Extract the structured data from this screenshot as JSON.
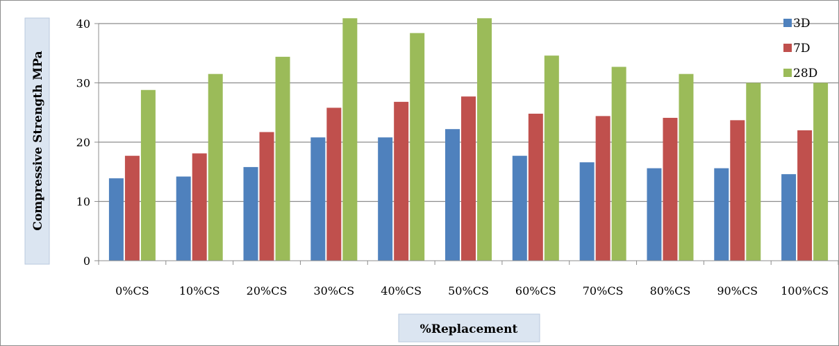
{
  "chart_data": {
    "type": "bar",
    "title": "",
    "xlabel": "%Replacement",
    "ylabel": "Compressive Strength MPa",
    "categories": [
      "0%CS",
      "10%CS",
      "20%CS",
      "30%CS",
      "40%CS",
      "50%CS",
      "60%CS",
      "70%CS",
      "80%CS",
      "90%CS",
      "100%CS"
    ],
    "series": [
      {
        "name": "3D",
        "color": "#4F81BD",
        "values": [
          13.9,
          14.2,
          15.8,
          20.8,
          20.8,
          22.2,
          17.7,
          16.6,
          15.6,
          15.6,
          14.6
        ]
      },
      {
        "name": "7D",
        "color": "#C0504D",
        "values": [
          17.7,
          18.1,
          21.7,
          25.8,
          26.8,
          27.7,
          24.8,
          24.4,
          24.1,
          23.7,
          22.0
        ]
      },
      {
        "name": "28D",
        "color": "#9BBB59",
        "values": [
          28.8,
          31.5,
          34.4,
          40.9,
          38.4,
          40.9,
          34.6,
          32.7,
          31.5,
          30.0,
          30.0
        ]
      }
    ],
    "ylim": [
      0,
      40
    ],
    "yticks": [
      0,
      10,
      20,
      30,
      40
    ],
    "grid": true,
    "legend": "top-right"
  }
}
